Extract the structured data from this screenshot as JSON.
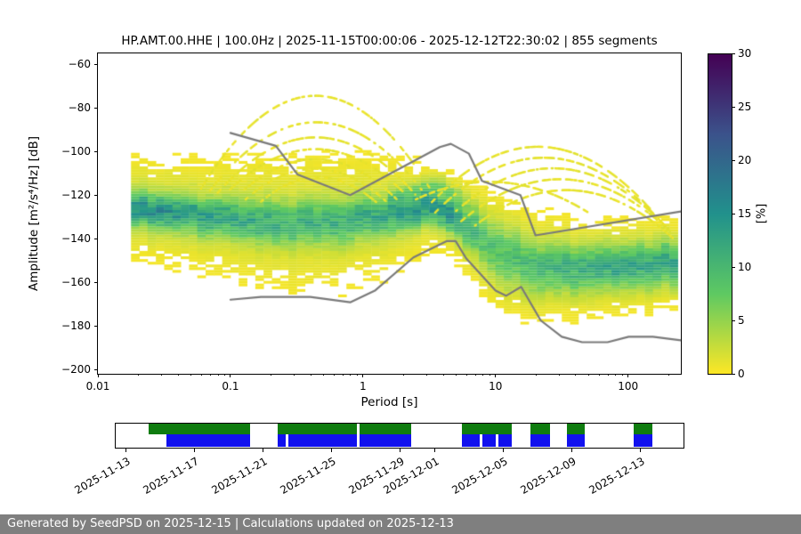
{
  "page": {
    "footer": "Generated by SeedPSD on 2025-12-15 | Calculations updated on 2025-12-13",
    "footer_bg_color": "#7f7f7f",
    "footer_text_color": "#ffffff"
  },
  "chart_data": {
    "type": "heatmap",
    "subtype": "ppsd-probability-density",
    "title": "HP.AMT.00.HHE | 100.0Hz | 2025-11-15T00:00:06 - 2025-12-12T22:30:02 | 855 segments",
    "xlabel": "Period [s]",
    "ylabel": "Amplitude [m²/s⁴/Hz] [dB]",
    "xscale": "log",
    "grid": false,
    "legend": false,
    "xlim": [
      0.01,
      250
    ],
    "ylim": [
      -202,
      -55
    ],
    "x_ticks": [
      0.01,
      0.1,
      1,
      10,
      100
    ],
    "x_tick_labels": [
      "0.01",
      "0.1",
      "1",
      "10",
      "100"
    ],
    "y_ticks": [
      -60,
      -80,
      -100,
      -120,
      -140,
      -160,
      -180,
      -200
    ],
    "y_tick_labels": [
      "−60",
      "−80",
      "−100",
      "−120",
      "−140",
      "−160",
      "−180",
      "−200"
    ],
    "colorbar": {
      "label": "[%]",
      "min": 0,
      "max": 30,
      "ticks": [
        0,
        5,
        10,
        15,
        20,
        25,
        30
      ],
      "tick_labels": [
        "0",
        "5",
        "10",
        "15",
        "20",
        "25",
        "30"
      ],
      "colormap": "viridis_r",
      "colormap_stops": [
        "#440154",
        "#3b528b",
        "#21918c",
        "#5ec962",
        "#fde725"
      ]
    },
    "density_ridges": {
      "primary": {
        "periods": [
          0.02,
          0.05,
          0.1,
          0.3,
          0.7,
          1.5,
          3,
          4.5,
          6,
          8,
          12,
          20,
          40,
          100,
          220
        ],
        "mode_db": [
          -126,
          -129,
          -131,
          -133,
          -132,
          -129,
          -126,
          -128,
          -135,
          -141,
          -148,
          -153,
          -154,
          -153,
          -151
        ],
        "sigma_db": [
          5,
          5.5,
          6,
          6.5,
          6.5,
          6,
          5,
          5,
          6,
          8,
          9,
          8,
          7,
          6.5,
          6.5
        ],
        "peak_percent": [
          13,
          11,
          10,
          9,
          9,
          10,
          12,
          13,
          9,
          7,
          7,
          8,
          9,
          10,
          10
        ],
        "halo_sigma_db": [
          13,
          14,
          16,
          18,
          18,
          16,
          13,
          12,
          13,
          15,
          16,
          15,
          13,
          12,
          12
        ],
        "halo_percent": [
          2.4,
          2.2,
          2.0,
          2.0,
          1.9,
          1.9,
          1.7,
          1.6,
          1.5,
          1.5,
          1.5,
          1.6,
          1.8,
          2.0,
          2.0
        ]
      },
      "secondary": {
        "periods": [
          1.5,
          2.5,
          4,
          5.5,
          7
        ],
        "mode_db": [
          -122,
          -118,
          -116,
          -120,
          -128
        ],
        "sigma_db": [
          3,
          3,
          3,
          3,
          4
        ],
        "peak_percent": [
          3,
          4,
          4,
          3,
          2
        ]
      }
    },
    "event_arcs": [
      [
        0.06,
        -117,
        0.35,
        -75,
        3.2,
        -117
      ],
      [
        0.07,
        -118,
        0.3,
        -88,
        2.8,
        -118
      ],
      [
        0.08,
        -119,
        0.35,
        -94,
        2.5,
        -120
      ],
      [
        0.09,
        -120,
        0.4,
        -99,
        2.2,
        -121
      ],
      [
        0.11,
        -121,
        0.35,
        -104,
        1.8,
        -122
      ],
      [
        0.13,
        -122,
        0.45,
        -108,
        1.5,
        -123
      ],
      [
        0.17,
        -123,
        0.5,
        -112,
        1.3,
        -124
      ],
      [
        3.0,
        -126,
        18,
        -98,
        150,
        -127
      ],
      [
        3.5,
        -128,
        20,
        -103,
        170,
        -131
      ],
      [
        4.5,
        -130,
        22,
        -108,
        190,
        -134
      ],
      [
        5.5,
        -132,
        25,
        -113,
        210,
        -137
      ],
      [
        7.0,
        -134,
        28,
        -118,
        220,
        -140
      ],
      [
        2.5,
        -122,
        10,
        -114,
        50,
        -128
      ]
    ],
    "noise_models": {
      "color": "#7a7a7a",
      "nhnm": [
        [
          0.1,
          -91.5
        ],
        [
          0.22,
          -97.4
        ],
        [
          0.32,
          -110.5
        ],
        [
          0.8,
          -120.0
        ],
        [
          3.8,
          -98.0
        ],
        [
          4.6,
          -96.5
        ],
        [
          6.3,
          -101.0
        ],
        [
          7.9,
          -113.5
        ],
        [
          15.4,
          -120.0
        ],
        [
          20.0,
          -138.5
        ],
        [
          250.0,
          -127.5
        ]
      ],
      "nlnm": [
        [
          0.1,
          -168.0
        ],
        [
          0.17,
          -166.7
        ],
        [
          0.4,
          -166.7
        ],
        [
          0.8,
          -169.2
        ],
        [
          1.24,
          -163.7
        ],
        [
          2.4,
          -148.6
        ],
        [
          4.3,
          -141.1
        ],
        [
          5.0,
          -141.1
        ],
        [
          6.0,
          -149.0
        ],
        [
          10.0,
          -163.8
        ],
        [
          12.0,
          -166.2
        ],
        [
          15.6,
          -162.1
        ],
        [
          21.9,
          -177.5
        ],
        [
          31.6,
          -185.0
        ],
        [
          45.0,
          -187.5
        ],
        [
          70.0,
          -187.5
        ],
        [
          101.0,
          -185.0
        ],
        [
          154.0,
          -185.0
        ],
        [
          250.0,
          -186.6
        ]
      ]
    }
  },
  "timeline": {
    "start_label_day": "2025-11-13",
    "domain_days": [
      -0.6,
      32.5
    ],
    "tick_days": [
      0,
      4,
      8,
      12,
      16,
      18,
      22,
      26,
      30
    ],
    "tick_labels": [
      "2025-11-13",
      "2025-11-17",
      "2025-11-21",
      "2025-11-25",
      "2025-11-29",
      "2025-12-01",
      "2025-12-05",
      "2025-12-09",
      "2025-12-13"
    ],
    "green_segments": [
      [
        1.3,
        7.25
      ],
      [
        8.85,
        13.45
      ],
      [
        13.62,
        16.6
      ],
      [
        19.6,
        22.5
      ],
      [
        23.6,
        24.7
      ],
      [
        25.7,
        26.75
      ],
      [
        29.6,
        30.7
      ]
    ],
    "blue_segments": [
      [
        2.35,
        7.25
      ],
      [
        8.85,
        9.3
      ],
      [
        9.45,
        13.45
      ],
      [
        13.62,
        16.6
      ],
      [
        19.6,
        20.6
      ],
      [
        20.78,
        21.55
      ],
      [
        21.7,
        22.5
      ],
      [
        23.6,
        24.7
      ],
      [
        25.7,
        26.75
      ],
      [
        29.6,
        30.7
      ]
    ],
    "colors": {
      "green": "#0f7c0f",
      "blue": "#1111ee"
    }
  }
}
